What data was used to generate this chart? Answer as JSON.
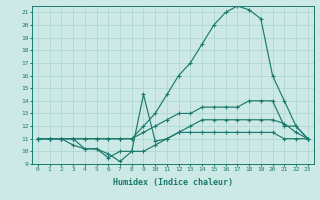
{
  "xlabel": "Humidex (Indice chaleur)",
  "background_color": "#cce9e5",
  "grid_color": "#b0d8d3",
  "line_color": "#1a7a6e",
  "xlim": [
    -0.5,
    23.5
  ],
  "ylim": [
    9,
    21.5
  ],
  "xticks": [
    0,
    1,
    2,
    3,
    4,
    5,
    6,
    7,
    8,
    9,
    10,
    11,
    12,
    13,
    14,
    15,
    16,
    17,
    18,
    19,
    20,
    21,
    22,
    23
  ],
  "yticks": [
    9,
    10,
    11,
    12,
    13,
    14,
    15,
    16,
    17,
    18,
    19,
    20,
    21
  ],
  "series": [
    {
      "x": [
        0,
        1,
        2,
        3,
        4,
        5,
        6,
        7,
        8,
        9,
        10,
        11,
        12,
        13,
        14,
        15,
        16,
        17,
        18,
        19,
        20,
        21,
        22,
        23
      ],
      "y": [
        11,
        11,
        11,
        11,
        11,
        11,
        11,
        11,
        11,
        12,
        13,
        14.5,
        16,
        17,
        18.5,
        20,
        21,
        21.5,
        21.2,
        20.5,
        16,
        14,
        12,
        11
      ]
    },
    {
      "x": [
        0,
        1,
        2,
        3,
        4,
        5,
        6,
        7,
        8,
        9,
        10,
        11,
        12,
        13,
        14,
        15,
        16,
        17,
        18,
        19,
        20,
        21,
        22,
        23
      ],
      "y": [
        11,
        11,
        11,
        11,
        11,
        11,
        11,
        11,
        11,
        11.5,
        12,
        12.5,
        13,
        13,
        13.5,
        13.5,
        13.5,
        13.5,
        14,
        14,
        14,
        12,
        12,
        11
      ]
    },
    {
      "x": [
        0,
        1,
        2,
        3,
        4,
        5,
        6,
        7,
        8,
        9,
        10,
        11,
        12,
        13,
        14,
        15,
        16,
        17,
        18,
        19,
        20,
        21,
        22,
        23
      ],
      "y": [
        11,
        11,
        11,
        10.5,
        10.2,
        10.2,
        9.8,
        9.2,
        10,
        14.5,
        10.8,
        11,
        11.5,
        12,
        12.5,
        12.5,
        12.5,
        12.5,
        12.5,
        12.5,
        12.5,
        12.2,
        11.5,
        11
      ]
    },
    {
      "x": [
        0,
        1,
        2,
        3,
        4,
        5,
        6,
        7,
        8,
        9,
        10,
        11,
        12,
        13,
        14,
        15,
        16,
        17,
        18,
        19,
        20,
        21,
        22,
        23
      ],
      "y": [
        11,
        11,
        11,
        11,
        10.2,
        10.2,
        9.5,
        10,
        10,
        10,
        10.5,
        11,
        11.5,
        11.5,
        11.5,
        11.5,
        11.5,
        11.5,
        11.5,
        11.5,
        11.5,
        11,
        11,
        11
      ]
    }
  ]
}
